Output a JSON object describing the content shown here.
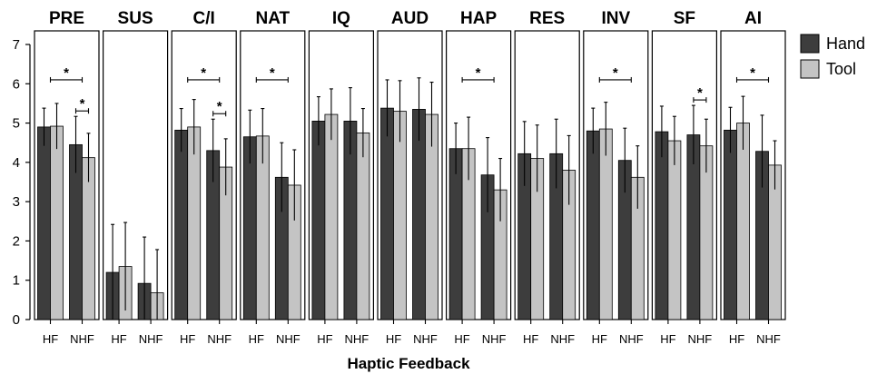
{
  "chart_data": {
    "type": "bar",
    "xlabel": "Haptic Feedback",
    "ylabel": "",
    "ylim": [
      0,
      7
    ],
    "yticks": [
      0,
      1,
      2,
      3,
      4,
      5,
      6,
      7
    ],
    "categories": [
      "HF",
      "NHF"
    ],
    "legend": {
      "position": "right",
      "entries": [
        {
          "name": "Hand",
          "color": "#3d3d3d"
        },
        {
          "name": "Tool",
          "color": "#c4c4c4"
        }
      ]
    },
    "panels": [
      {
        "title": "PRE",
        "hand": [
          4.9,
          4.45
        ],
        "tool": [
          4.92,
          4.12
        ],
        "hand_err": [
          0.48,
          0.72
        ],
        "tool_err": [
          0.58,
          0.62
        ],
        "significance": [
          {
            "between": "HF-NHF",
            "label": "*"
          },
          {
            "between": "NHF Hand-Tool",
            "label": "*"
          }
        ]
      },
      {
        "title": "SUS",
        "hand": [
          1.2,
          0.92
        ],
        "tool": [
          1.35,
          0.68
        ],
        "hand_err": [
          1.22,
          1.18
        ],
        "tool_err": [
          1.12,
          1.1
        ],
        "significance": []
      },
      {
        "title": "C/I",
        "hand": [
          4.82,
          4.3
        ],
        "tool": [
          4.9,
          3.88
        ],
        "hand_err": [
          0.55,
          0.8
        ],
        "tool_err": [
          0.7,
          0.72
        ],
        "significance": [
          {
            "between": "HF-NHF",
            "label": "*"
          },
          {
            "between": "NHF Hand-Tool",
            "label": "*"
          }
        ]
      },
      {
        "title": "NAT",
        "hand": [
          4.65,
          3.62
        ],
        "tool": [
          4.67,
          3.42
        ],
        "hand_err": [
          0.68,
          0.88
        ],
        "tool_err": [
          0.7,
          0.9
        ],
        "significance": [
          {
            "between": "HF-NHF",
            "label": "*"
          }
        ]
      },
      {
        "title": "IQ",
        "hand": [
          5.05,
          5.05
        ],
        "tool": [
          5.22,
          4.75
        ],
        "hand_err": [
          0.62,
          0.85
        ],
        "tool_err": [
          0.65,
          0.62
        ],
        "significance": []
      },
      {
        "title": "AUD",
        "hand": [
          5.38,
          5.35
        ],
        "tool": [
          5.3,
          5.22
        ],
        "hand_err": [
          0.72,
          0.8
        ],
        "tool_err": [
          0.78,
          0.82
        ],
        "significance": []
      },
      {
        "title": "HAP",
        "hand": [
          4.35,
          3.68
        ],
        "tool": [
          4.35,
          3.3
        ],
        "hand_err": [
          0.65,
          0.95
        ],
        "tool_err": [
          0.8,
          0.8
        ],
        "significance": [
          {
            "between": "HF-NHF",
            "label": "*"
          }
        ]
      },
      {
        "title": "RES",
        "hand": [
          4.22,
          4.22
        ],
        "tool": [
          4.1,
          3.8
        ],
        "hand_err": [
          0.82,
          0.88
        ],
        "tool_err": [
          0.85,
          0.88
        ],
        "significance": []
      },
      {
        "title": "INV",
        "hand": [
          4.8,
          4.05
        ],
        "tool": [
          4.85,
          3.62
        ],
        "hand_err": [
          0.58,
          0.82
        ],
        "tool_err": [
          0.68,
          0.8
        ],
        "significance": [
          {
            "between": "HF-NHF",
            "label": "*"
          }
        ]
      },
      {
        "title": "SF",
        "hand": [
          4.78,
          4.7
        ],
        "tool": [
          4.55,
          4.42
        ],
        "hand_err": [
          0.65,
          0.75
        ],
        "tool_err": [
          0.62,
          0.68
        ],
        "significance": [
          {
            "between": "NHF Hand-Tool",
            "label": "*"
          }
        ]
      },
      {
        "title": "AI",
        "hand": [
          4.82,
          4.28
        ],
        "tool": [
          5.0,
          3.93
        ],
        "hand_err": [
          0.58,
          0.92
        ],
        "tool_err": [
          0.68,
          0.62
        ],
        "significance": [
          {
            "between": "HF-NHF",
            "label": "*"
          }
        ]
      }
    ]
  }
}
